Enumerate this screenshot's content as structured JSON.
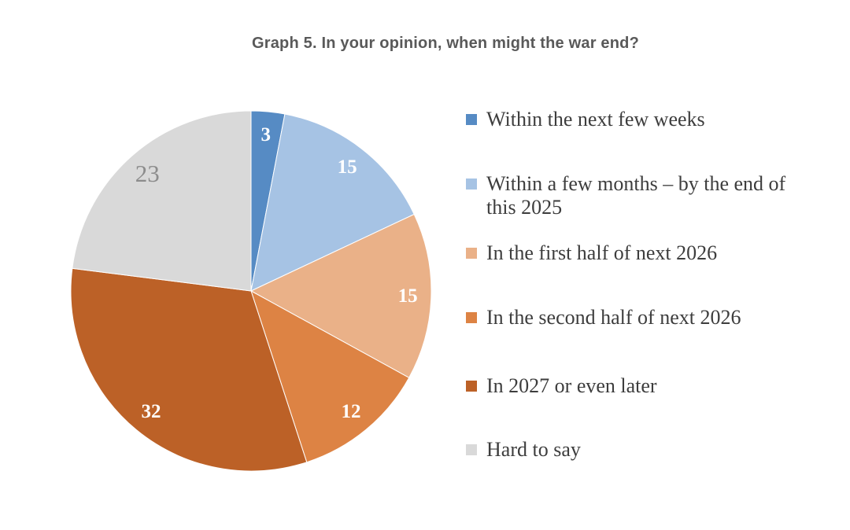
{
  "title": "Graph 5. In your opinion, when might the war end?",
  "chart_data": {
    "type": "pie",
    "title": "Graph 5. In your opinion, when might the war end?",
    "total": 100,
    "start_angle_deg": 0,
    "direction": "clockwise",
    "legend_position": "right",
    "slices": [
      {
        "label": "Within the next few weeks",
        "value": 3,
        "color": "#568bc4",
        "label_color": "#ffffff"
      },
      {
        "label": "Within a few months – by the end of this 2025",
        "value": 15,
        "color": "#a6c3e4",
        "label_color": "#ffffff"
      },
      {
        "label": "In the first half of next 2026",
        "value": 15,
        "color": "#eab188",
        "label_color": "#ffffff"
      },
      {
        "label": "In the second half of next 2026",
        "value": 12,
        "color": "#dd8344",
        "label_color": "#ffffff"
      },
      {
        "label": "In 2027 or even later",
        "value": 32,
        "color": "#bc6127",
        "label_color": "#ffffff"
      },
      {
        "label": "Hard to say",
        "value": 23,
        "color": "#d9d9d9",
        "label_color": "#8c8c8c"
      }
    ]
  },
  "legend": {
    "items": [
      {
        "lines": [
          "Within the next few weeks"
        ],
        "color": "#568bc4"
      },
      {
        "lines": [
          "Within a few months – by the end of",
          "this 2025"
        ],
        "color": "#a6c3e4"
      },
      {
        "lines": [
          "In the first half of next 2026"
        ],
        "color": "#eab188"
      },
      {
        "lines": [
          "In the second half of next 2026"
        ],
        "color": "#dd8344"
      },
      {
        "lines": [
          "In 2027 or even later"
        ],
        "color": "#bc6127"
      },
      {
        "lines": [
          "Hard to say"
        ],
        "color": "#d9d9d9"
      }
    ]
  },
  "colors": {
    "background": "#ffffff",
    "title_text": "#595959",
    "legend_text": "#3d3d3d"
  }
}
